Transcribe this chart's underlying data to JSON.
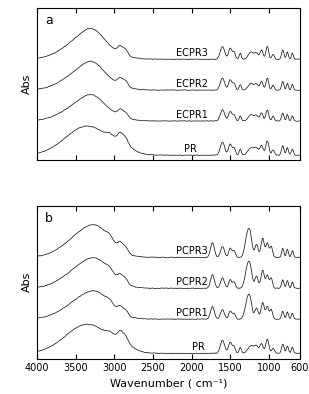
{
  "xlabel": "Wavenumber ( cm⁻¹)",
  "ylabel_a": "Abs",
  "ylabel_b": "Abs",
  "label_a": "a",
  "label_b": "b",
  "x_ticks": [
    4000,
    3500,
    3000,
    2500,
    2000,
    1500,
    1000,
    600
  ],
  "x_tick_labels": [
    "4000",
    "3500",
    "3000",
    "2500",
    "2000",
    "1500",
    "1000",
    "600"
  ],
  "spectra_a_labels": [
    "ECPR3",
    "ECPR2",
    "ECPR1",
    "PR"
  ],
  "spectra_b_labels": [
    "PCPR3",
    "PCPR2",
    "PCPR1",
    "PR"
  ],
  "offsets_a": [
    2.8,
    1.9,
    1.0,
    0.0
  ],
  "offsets_b": [
    2.8,
    1.9,
    1.0,
    0.0
  ],
  "line_color": "#1a1a1a",
  "background_color": "#ffffff",
  "label_fontsize": 7,
  "tick_fontsize": 7,
  "axis_label_fontsize": 8,
  "panel_label_fontsize": 9
}
